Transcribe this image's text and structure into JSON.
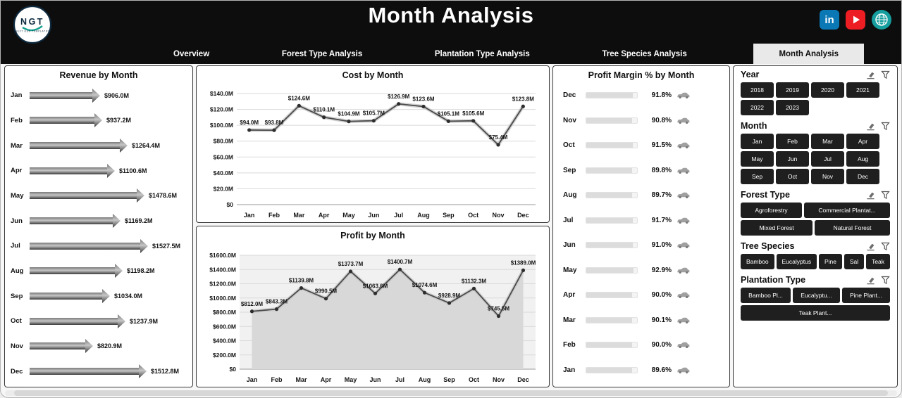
{
  "header": {
    "title": "Month Analysis",
    "logo": {
      "text": "NGT",
      "subtext": "NEXT GEN TEMPLATES"
    },
    "social": {
      "linkedin_text": "in"
    }
  },
  "colors": {
    "header_bg": "#0D0D0D",
    "linkedin": "#0A78B5",
    "youtube": "#ED1D24",
    "website": "#169E9E",
    "button_bg": "#1F1F1F",
    "active_tab_bg": "#E9E9E9"
  },
  "tabs": [
    {
      "label": "Overview",
      "active": false
    },
    {
      "label": "Forest Type Analysis",
      "active": false
    },
    {
      "label": "Plantation Type Analysis",
      "active": false
    },
    {
      "label": "Tree Species Analysis",
      "active": false
    },
    {
      "label": "Month Analysis",
      "active": true
    }
  ],
  "chart_data": [
    {
      "type": "bar",
      "orientation": "horizontal",
      "title": "Revenue by Month",
      "categories": [
        "Jan",
        "Feb",
        "Mar",
        "Apr",
        "May",
        "Jun",
        "Jul",
        "Aug",
        "Sep",
        "Oct",
        "Nov",
        "Dec"
      ],
      "values": [
        906.0,
        937.2,
        1264.4,
        1100.6,
        1478.6,
        1169.2,
        1527.5,
        1198.2,
        1034.0,
        1237.9,
        820.9,
        1512.8
      ],
      "labels": [
        "$906.0M",
        "$937.2M",
        "$1264.4M",
        "$1100.6M",
        "$1478.6M",
        "$1169.2M",
        "$1527.5M",
        "$1198.2M",
        "$1034.0M",
        "$1237.9M",
        "$820.9M",
        "$1512.8M"
      ],
      "unit": "USD millions"
    },
    {
      "type": "line",
      "title": "Cost by Month",
      "categories": [
        "Jan",
        "Feb",
        "Mar",
        "Apr",
        "May",
        "Jun",
        "Jul",
        "Aug",
        "Sep",
        "Oct",
        "Nov",
        "Dec"
      ],
      "values": [
        94.0,
        93.8,
        124.6,
        110.1,
        104.9,
        105.7,
        126.9,
        123.6,
        105.1,
        105.6,
        75.4,
        123.8
      ],
      "labels": [
        "$94.0M",
        "$93.8M",
        "$124.6M",
        "$110.1M",
        "$104.9M",
        "$105.7M",
        "$126.9M",
        "$123.6M",
        "$105.1M",
        "$105.6M",
        "$75.4M",
        "$123.8M"
      ],
      "ylim": [
        0,
        140
      ],
      "yticks": [
        "$0",
        "$20.0M",
        "$40.0M",
        "$60.0M",
        "$80.0M",
        "$100.0M",
        "$120.0M",
        "$140.0M"
      ],
      "grid": true,
      "legend": "none"
    },
    {
      "type": "area",
      "title": "Profit by Month",
      "categories": [
        "Jan",
        "Feb",
        "Mar",
        "Apr",
        "May",
        "Jun",
        "Jul",
        "Aug",
        "Sep",
        "Oct",
        "Nov",
        "Dec"
      ],
      "values": [
        812.0,
        843.3,
        1139.8,
        990.5,
        1373.7,
        1063.6,
        1400.7,
        1074.6,
        928.9,
        1132.3,
        745.5,
        1389.0
      ],
      "labels": [
        "$812.0M",
        "$843.3M",
        "$1139.8M",
        "$990.5M",
        "$1373.7M",
        "$1063.6M",
        "$1400.7M",
        "$1074.6M",
        "$928.9M",
        "$1132.3M",
        "$745.5M",
        "$1389.0M"
      ],
      "ylim": [
        0,
        1600
      ],
      "yticks": [
        "$0",
        "$200.0M",
        "$400.0M",
        "$600.0M",
        "$800.0M",
        "$1000.0M",
        "$1200.0M",
        "$1400.0M",
        "$1600.0M"
      ],
      "grid": true,
      "legend": "none"
    },
    {
      "type": "bar",
      "orientation": "horizontal",
      "title": "Profit Margin % by Month",
      "categories": [
        "Dec",
        "Nov",
        "Oct",
        "Sep",
        "Aug",
        "Jul",
        "Jun",
        "May",
        "Apr",
        "Mar",
        "Feb",
        "Jan"
      ],
      "values": [
        91.8,
        90.8,
        91.5,
        89.8,
        89.7,
        91.7,
        91.0,
        92.9,
        90.0,
        90.1,
        90.0,
        89.6
      ],
      "labels": [
        "91.8%",
        "90.8%",
        "91.5%",
        "89.8%",
        "89.7%",
        "91.7%",
        "91.0%",
        "92.9%",
        "90.0%",
        "90.1%",
        "90.0%",
        "89.6%"
      ],
      "xlim": [
        0,
        100
      ]
    }
  ],
  "filters": {
    "sections": [
      {
        "title": "Year",
        "options": [
          "2018",
          "2019",
          "2020",
          "2021",
          "2022",
          "2023"
        ]
      },
      {
        "title": "Month",
        "options": [
          "Jan",
          "Feb",
          "Mar",
          "Apr",
          "May",
          "Jun",
          "Jul",
          "Aug",
          "Sep",
          "Oct",
          "Nov",
          "Dec"
        ]
      },
      {
        "title": "Forest Type",
        "options": [
          "Agroforestry",
          "Commercial Plantat...",
          "Mixed Forest",
          "Natural Forest"
        ]
      },
      {
        "title": "Tree Species",
        "options": [
          "Bamboo",
          "Eucalyptus",
          "Pine",
          "Sal",
          "Teak"
        ]
      },
      {
        "title": "Plantation Type",
        "options": [
          "Bamboo Pl...",
          "Eucalyptu...",
          "Pine Plant...",
          "Teak Plant..."
        ]
      }
    ]
  }
}
